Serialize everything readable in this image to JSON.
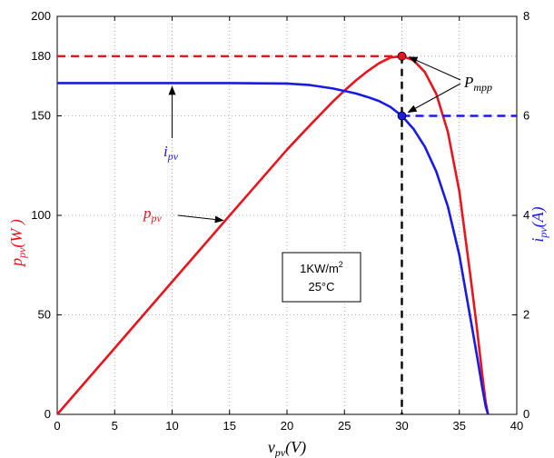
{
  "chart_data": {
    "type": "line",
    "title": "",
    "xlabel": {
      "main": "v",
      "sub": "pv",
      "unit": "(V)"
    },
    "ylabel_left": {
      "main": "p",
      "sub": "pv",
      "unit": "(W )"
    },
    "ylabel_right": {
      "main": "i",
      "sub": "pv",
      "unit": "(A)"
    },
    "xlim": [
      0,
      40
    ],
    "ylim_left": [
      0,
      200
    ],
    "ylim_right": [
      0,
      8
    ],
    "xticks": [
      0,
      5,
      10,
      15,
      20,
      25,
      30,
      35,
      40
    ],
    "yticks_left": [
      0,
      50,
      100,
      150,
      180,
      200
    ],
    "yticks_right": [
      0,
      2,
      4,
      6,
      8
    ],
    "grid": "dotted",
    "series": [
      {
        "key": "power",
        "axis": "left",
        "color": "#e8141e",
        "x": [
          0,
          5,
          10,
          15,
          20,
          22,
          24,
          25,
          26,
          27,
          28,
          29,
          30,
          31,
          32,
          33,
          34,
          35,
          35.5,
          36,
          36.5,
          37,
          37.3,
          37.5
        ],
        "y": [
          0,
          33.3,
          66.6,
          99.9,
          133.0,
          145.3,
          157.2,
          162.7,
          167.8,
          172.4,
          176.4,
          179.3,
          180.0,
          178.0,
          172.0,
          161.0,
          142.0,
          112.0,
          90.0,
          68.0,
          45.0,
          20.0,
          6.0,
          0
        ]
      },
      {
        "key": "current",
        "axis": "right",
        "color": "#1a1ae6",
        "x": [
          0,
          5,
          10,
          15,
          20,
          22,
          24,
          25,
          26,
          27,
          28,
          29,
          30,
          31,
          32,
          33,
          34,
          35,
          35.5,
          36,
          36.5,
          37,
          37.3,
          37.5
        ],
        "y": [
          6.66,
          6.66,
          6.66,
          6.66,
          6.65,
          6.62,
          6.55,
          6.5,
          6.45,
          6.38,
          6.3,
          6.18,
          6.0,
          5.74,
          5.38,
          4.88,
          4.18,
          3.2,
          2.54,
          1.89,
          1.23,
          0.54,
          0.16,
          0
        ]
      }
    ],
    "mpp": {
      "v": 30,
      "p": 180,
      "i": 6
    },
    "annotations": {
      "ipv": {
        "main": "i",
        "sub": "pv"
      },
      "ppv": {
        "main": "p",
        "sub": "pv"
      },
      "pmpp": {
        "main": "P",
        "sub": "mpp"
      }
    },
    "condition_box": {
      "irradiance_main": "1KW/m",
      "irradiance_sup": "2",
      "temperature": "25°C"
    }
  },
  "colors": {
    "power": "#e8141e",
    "current": "#1a1ae6",
    "mpp_line": "#000000"
  }
}
